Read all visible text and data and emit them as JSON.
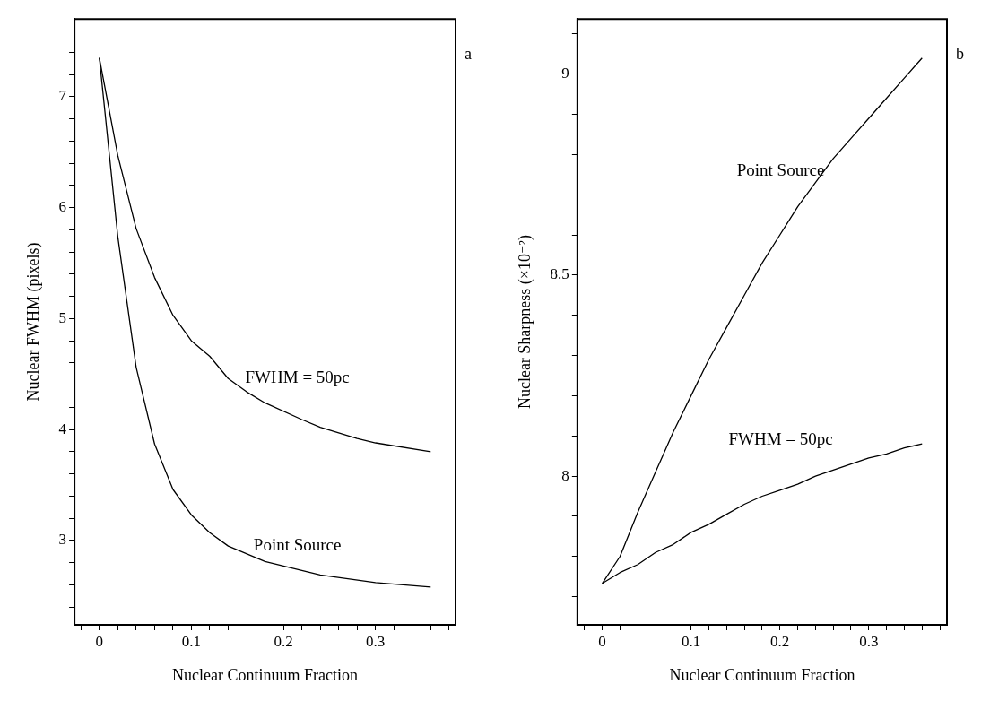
{
  "chart_data": [
    {
      "type": "line",
      "xlabel": "Nuclear Continuum Fraction",
      "ylabel": "Nuclear FWHM (pixels)",
      "annotations": [
        "a"
      ],
      "xlim": [
        -0.027,
        0.387
      ],
      "ylim": [
        2.24,
        7.7
      ],
      "xticks": [
        {
          "value": -0.02,
          "label": null
        },
        0,
        {
          "value": 0.02,
          "label": null
        },
        {
          "value": 0.04,
          "label": null
        },
        {
          "value": 0.06,
          "label": null
        },
        {
          "value": 0.08,
          "label": null
        },
        0.1,
        {
          "value": 0.12,
          "label": null
        },
        {
          "value": 0.14,
          "label": null
        },
        {
          "value": 0.16,
          "label": null
        },
        {
          "value": 0.18,
          "label": null
        },
        0.2,
        {
          "value": 0.22,
          "label": null
        },
        {
          "value": 0.24,
          "label": null
        },
        {
          "value": 0.26,
          "label": null
        },
        {
          "value": 0.28,
          "label": null
        },
        0.3,
        {
          "value": 0.32,
          "label": null
        },
        {
          "value": 0.34,
          "label": null
        },
        {
          "value": 0.36,
          "label": null
        },
        {
          "value": 0.38,
          "label": null
        }
      ],
      "yticks": [
        {
          "value": 2.4,
          "label": null
        },
        {
          "value": 2.6,
          "label": null
        },
        {
          "value": 2.8,
          "label": null
        },
        3,
        {
          "value": 3.2,
          "label": null
        },
        {
          "value": 3.4,
          "label": null
        },
        {
          "value": 3.6,
          "label": null
        },
        {
          "value": 3.8,
          "label": null
        },
        4,
        {
          "value": 4.2,
          "label": null
        },
        {
          "value": 4.4,
          "label": null
        },
        {
          "value": 4.6,
          "label": null
        },
        {
          "value": 4.8,
          "label": null
        },
        5,
        {
          "value": 5.2,
          "label": null
        },
        {
          "value": 5.4,
          "label": null
        },
        {
          "value": 5.6,
          "label": null
        },
        {
          "value": 5.8,
          "label": null
        },
        6,
        {
          "value": 6.2,
          "label": null
        },
        {
          "value": 6.4,
          "label": null
        },
        {
          "value": 6.6,
          "label": null
        },
        {
          "value": 6.8,
          "label": null
        },
        7,
        {
          "value": 7.2,
          "label": null
        },
        {
          "value": 7.4,
          "label": null
        },
        {
          "value": 7.6,
          "label": null
        }
      ],
      "series": [
        {
          "name": "FWHM = 50pc",
          "color": "#000000",
          "x": [
            0,
            0.02,
            0.04,
            0.06,
            0.08,
            0.1,
            0.12,
            0.14,
            0.16,
            0.18,
            0.22,
            0.24,
            0.28,
            0.3,
            0.36
          ],
          "values": [
            7.35,
            6.47,
            5.81,
            5.37,
            5.03,
            4.8,
            4.66,
            4.46,
            4.34,
            4.24,
            4.09,
            4.02,
            3.92,
            3.88,
            3.8
          ]
        },
        {
          "name": "Point Source",
          "color": "#000000",
          "x": [
            0,
            0.02,
            0.04,
            0.06,
            0.08,
            0.1,
            0.12,
            0.14,
            0.18,
            0.24,
            0.3,
            0.36
          ],
          "values": [
            7.35,
            5.74,
            4.56,
            3.87,
            3.46,
            3.23,
            3.07,
            2.95,
            2.81,
            2.69,
            2.62,
            2.58
          ]
        }
      ]
    },
    {
      "type": "line",
      "xlabel": "Nuclear Continuum Fraction",
      "ylabel": "Nuclear Sharpness (×10⁻²)",
      "annotations": [
        "b"
      ],
      "xlim": [
        -0.028,
        0.388
      ],
      "ylim": [
        7.63,
        9.137
      ],
      "xticks": [
        {
          "value": -0.02,
          "label": null
        },
        0,
        {
          "value": 0.02,
          "label": null
        },
        {
          "value": 0.04,
          "label": null
        },
        {
          "value": 0.06,
          "label": null
        },
        {
          "value": 0.08,
          "label": null
        },
        0.1,
        {
          "value": 0.12,
          "label": null
        },
        {
          "value": 0.14,
          "label": null
        },
        {
          "value": 0.16,
          "label": null
        },
        {
          "value": 0.18,
          "label": null
        },
        0.2,
        {
          "value": 0.22,
          "label": null
        },
        {
          "value": 0.24,
          "label": null
        },
        {
          "value": 0.26,
          "label": null
        },
        {
          "value": 0.28,
          "label": null
        },
        0.3,
        {
          "value": 0.32,
          "label": null
        },
        {
          "value": 0.34,
          "label": null
        },
        {
          "value": 0.36,
          "label": null
        },
        {
          "value": 0.38,
          "label": null
        }
      ],
      "yticks": [
        {
          "value": 7.7,
          "label": null
        },
        {
          "value": 7.8,
          "label": null
        },
        {
          "value": 7.9,
          "label": null
        },
        8,
        {
          "value": 8.1,
          "label": null
        },
        {
          "value": 8.2,
          "label": null
        },
        {
          "value": 8.3,
          "label": null
        },
        {
          "value": 8.4,
          "label": null
        },
        8.5,
        {
          "value": 8.6,
          "label": null
        },
        {
          "value": 8.7,
          "label": null
        },
        {
          "value": 8.8,
          "label": null
        },
        {
          "value": 8.9,
          "label": null
        },
        9,
        {
          "value": 9.1,
          "label": null
        }
      ],
      "series": [
        {
          "name": "Point Source",
          "color": "#000000",
          "x": [
            0,
            0.02,
            0.04,
            0.06,
            0.08,
            0.1,
            0.12,
            0.14,
            0.16,
            0.18,
            0.2,
            0.22,
            0.24,
            0.26,
            0.28,
            0.3,
            0.32,
            0.34,
            0.36
          ],
          "values": [
            7.733,
            7.8,
            7.91,
            8.01,
            8.11,
            8.2,
            8.29,
            8.37,
            8.45,
            8.53,
            8.6,
            8.67,
            8.73,
            8.79,
            8.84,
            8.89,
            8.94,
            8.99,
            9.04
          ]
        },
        {
          "name": "FWHM = 50pc",
          "color": "#000000",
          "x": [
            0,
            0.02,
            0.04,
            0.06,
            0.08,
            0.1,
            0.12,
            0.14,
            0.16,
            0.18,
            0.2,
            0.22,
            0.24,
            0.26,
            0.28,
            0.3,
            0.32,
            0.34,
            0.36
          ],
          "values": [
            7.733,
            7.76,
            7.78,
            7.81,
            7.83,
            7.86,
            7.88,
            7.905,
            7.93,
            7.95,
            7.965,
            7.98,
            8.0,
            8.015,
            8.03,
            8.045,
            8.055,
            8.07,
            8.08
          ]
        }
      ]
    }
  ]
}
